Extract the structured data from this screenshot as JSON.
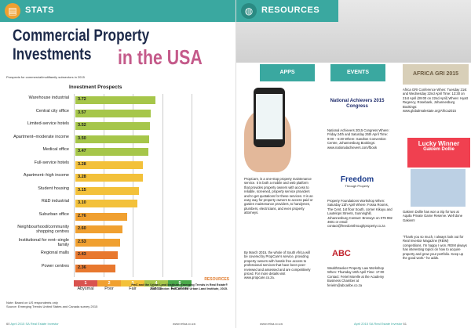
{
  "left": {
    "header": "STATS",
    "title_line1": "Commercial Property Investments",
    "title_line2": "in the USA",
    "subtitle": "Prospects for commercial/multifamily subsectors in 2015",
    "chart_data": {
      "type": "bar",
      "title": "Investment Prospects",
      "categories": [
        "Warehouse industrial",
        "Central city office",
        "Limited-service hotels",
        "Apartment–moderate income",
        "Medical office",
        "Full-service hotels",
        "Apartment–high income",
        "Student housing",
        "R&D industrial",
        "Suburban office",
        "Neighbourhood/community shopping centres",
        "Institutional for rent–single family",
        "Regional malls",
        "Power centres"
      ],
      "values": [
        3.72,
        3.57,
        3.52,
        3.5,
        3.47,
        3.28,
        3.28,
        3.15,
        3.1,
        2.76,
        2.6,
        2.53,
        2.43,
        2.36
      ],
      "value_labels": [
        "3.72",
        "3.57",
        "3.52",
        "3.50",
        "3.47",
        "3.28",
        "3.28",
        "3.15",
        "3.10",
        "2.76",
        "2.60",
        "2.53",
        "2.43",
        "2.36"
      ],
      "xlim": [
        1,
        5
      ],
      "scale_numbers": [
        "1",
        "2",
        "3",
        "4",
        "5"
      ],
      "scale_labels": [
        "Abysmal",
        "Poor",
        "Fair",
        "Good",
        "Excellent"
      ],
      "scale_colors": [
        "#d9534f",
        "#f0a030",
        "#f3c13a",
        "#a6c64a",
        "#4aa94a"
      ]
    },
    "note": "Note: Based on US respondents only",
    "source": "Source: Emerging Trends United States and Canada survey 2015",
    "resources": "RESOURCES",
    "resources_text": "PwC and the Urban Land Institute. Emerging Trends in Real Estate® 2015. London: PwC and the Urban Land Institute, 2015.",
    "footer_page": "60",
    "footer_text": "April 2015 SA Real Estate Investor",
    "footer_url": "www.reisa.co.za"
  },
  "right": {
    "header": "RESOURCES",
    "apps_label": "APPS",
    "events_label": "EVENTS",
    "apps_text": "PropCare, is a one-stop property maintenance service. It is both a mobile and web platform that provides property owners with access to reliable, screened, property service providers and to get quotations for these services. It is an easy way for property owners to access paid or garden maintenance providers, to handymen, plumbers, electricians, and even property attorneys.",
    "apps_text2": "By March 2015, the whole of South Africa will be covered by PropCare's service, providing property owners with hassle free access to professional services that have been peer-reviewed and assessed and are competitively priced. For more details visit www.propcare.co.za.",
    "na_logo": "National Achievers 2015 Congress",
    "na_text": "National Achievers 2015 Congress Where: Friday 24th and Saturday 25th April Time: 9:00 – 5:30 Where: Sandton Convention Centre, Johannesburg Bookings: www.nationalachievers.com/fbook",
    "freedom_logo": "Freedom",
    "freedom_sub": "Through Property",
    "freedom_text": "Property Foundations Workshop When: Saturday 11th April Where: Fossa Rooms, The Cent, 1st floor South, corner Kikuyu and Lautelops Streets, Sunninghill, Johannesburg Contact: Bronwyn on 079 992 4601 or email contact@freedomthroughproperty.co.za",
    "abc_logo": "ABC",
    "abc_text": "WealthSeeker Property Law Workshop When: Thursday 16th April Time: 17:00 Contact: Feriel Morelle at the Academy Business Chamber at ferielm@abcaribe.co.za",
    "gri_logo": "AFRICA GRI 2015",
    "gri_text": "Africa GRI Conference When: Tuesday 21st and Wednesday 22nd April Time: 13:30 on 21st April (09:00 on 22nd April) Where: Hyatt Regency, Rosebank, Johannesburg Bookings: www.globalrealestate.org/Africa2015",
    "lucky_title": "Lucky Winner",
    "lucky_name": "Gakiem Dollie",
    "lucky_text": "Gakiem Dollie has won a trip for two at Aquila Private Game Reserve. Well done Gakiem!",
    "lucky_quote": "\"Thank you so much, I always look out for Real Investor Magazine (REIM) competitions. I'm happy I won. REIM always has interesting topics on how to acquire property and grow your portfolio. Keep up the good work.\" he adds.",
    "footer_page": "61",
    "footer_text": "April 2015 SA Real Estate Investor",
    "footer_url": "www.reisa.co.za"
  }
}
